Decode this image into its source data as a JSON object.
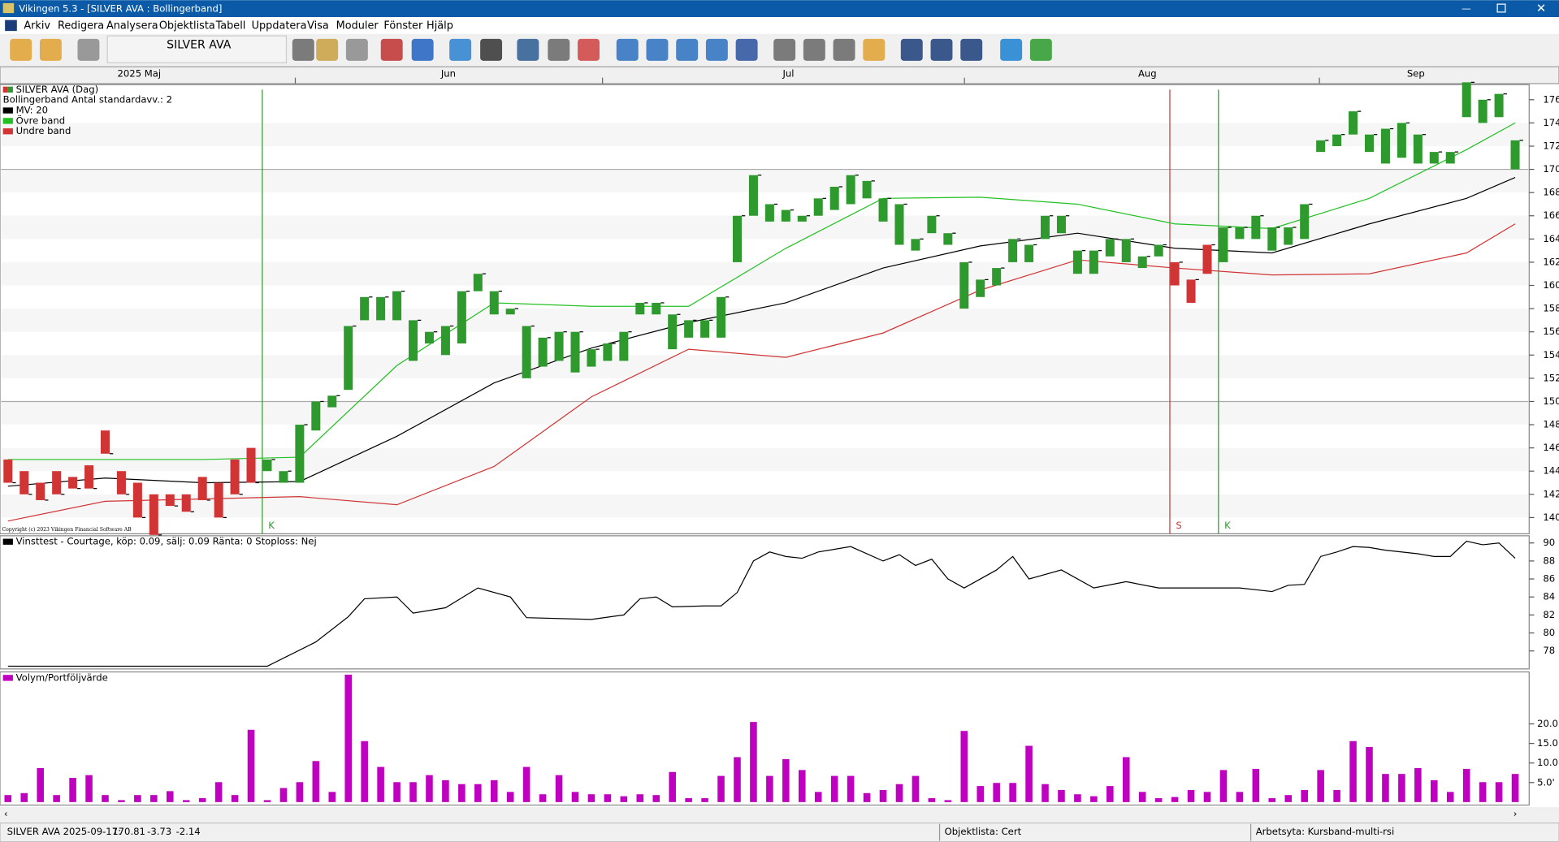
{
  "window": {
    "title": "Vikingen 5.3 - [SILVER AVA : Bollingerband]",
    "menu": [
      "Arkiv",
      "Redigera",
      "Analysera",
      "Objektlista",
      "Tabell",
      "Uppdatera",
      "Visa",
      "Moduler",
      "Fönster",
      "Hjälp"
    ]
  },
  "toolbar": {
    "symbol": "SILVER AVA"
  },
  "chart_data": [
    {
      "type": "candlestick",
      "title": "SILVER AVA (Dag)",
      "subtitle": "Bollingerband  Antal standardavv.: 2",
      "months": [
        "2025 Maj",
        "Jun",
        "Jul",
        "Aug",
        "Sep"
      ],
      "up_color": "#2e9a2e",
      "down_color": "#d03434",
      "open": [
        145,
        144,
        143,
        144,
        143.5,
        144.5,
        147.5,
        144,
        143,
        142,
        142,
        142,
        143.5,
        143,
        145,
        146,
        144,
        143,
        143,
        147.5,
        149.5,
        151,
        157,
        157,
        157,
        153.5,
        155,
        154,
        155,
        159.5,
        157.5,
        157.5,
        152,
        153,
        153.5,
        152.5,
        153,
        153.5,
        153.5,
        157.5,
        157.5,
        154.5,
        155.5,
        155.5,
        155.5,
        162,
        166,
        165.5,
        165.5,
        165.5,
        166,
        166.5,
        167,
        167.5,
        165.5,
        163.5,
        163,
        164.5,
        163.5,
        158,
        159,
        160,
        162,
        162,
        164,
        164.5,
        161,
        161,
        162.5,
        162,
        161.5,
        162.5,
        160,
        158.5,
        161,
        162,
        164,
        164,
        163,
        163.5,
        164,
        171.5,
        172,
        173,
        171.5,
        170.5,
        171,
        170.5,
        170.5,
        170.5,
        174.5,
        174,
        174.5,
        170
      ],
      "close": [
        143,
        142,
        141.5,
        142,
        142.5,
        142.5,
        145.5,
        142,
        140,
        138.5,
        141,
        140.5,
        141.5,
        140,
        142,
        143,
        145,
        144,
        148,
        150,
        150.5,
        156.5,
        159,
        159,
        159.5,
        157,
        156,
        156.5,
        159.5,
        161,
        159.5,
        158,
        156.5,
        155.5,
        156,
        156,
        154.5,
        155,
        156,
        158.5,
        158.5,
        157.5,
        157,
        157,
        159,
        166,
        169.5,
        167,
        166.5,
        166,
        167.5,
        168.5,
        169.5,
        169,
        167.5,
        167,
        164,
        166,
        164.5,
        162,
        160.5,
        161.5,
        164,
        163.5,
        166,
        166,
        163,
        163,
        164,
        164,
        162.5,
        163.5,
        162,
        160.5,
        163.5,
        165,
        165,
        166,
        165,
        165,
        167,
        172.5,
        173,
        175,
        173,
        173.5,
        174,
        173,
        171.5,
        171.5,
        177.5,
        176,
        176.5,
        172.5
      ],
      "signals": [
        {
          "label": "K",
          "index": 16
        },
        {
          "label": "S",
          "index": 72
        },
        {
          "label": "K",
          "index": 75
        }
      ],
      "lines": [
        {
          "name": "MV: 20",
          "color": "#000000",
          "x": [
            0,
            6,
            12,
            18,
            24,
            30,
            36,
            42,
            48,
            54,
            60,
            66,
            72,
            78,
            84,
            90,
            93
          ],
          "values": [
            142.7,
            143.4,
            143,
            143.1,
            147,
            151.6,
            154.6,
            156.8,
            158.5,
            161.5,
            163.4,
            164.5,
            163.2,
            162.8,
            165.3,
            167.5,
            169.3
          ]
        },
        {
          "name": "Övre band",
          "color": "#22c022",
          "x": [
            0,
            6,
            12,
            18,
            24,
            30,
            36,
            42,
            48,
            54,
            60,
            66,
            72,
            78,
            84,
            90,
            93
          ],
          "values": [
            145,
            145,
            145,
            145.2,
            153.1,
            158.5,
            158.2,
            158.2,
            163.2,
            167.5,
            167.6,
            167,
            165.3,
            164.9,
            167.5,
            171.7,
            174
          ]
        },
        {
          "name": "Undre band",
          "color": "#d03434",
          "x": [
            0,
            6,
            12,
            18,
            24,
            30,
            36,
            42,
            48,
            54,
            60,
            66,
            72,
            78,
            84,
            90,
            93
          ],
          "values": [
            139.7,
            141.4,
            141.6,
            141.8,
            141.1,
            144.4,
            150.4,
            154.5,
            153.8,
            155.9,
            159.6,
            162.2,
            161.5,
            160.9,
            161,
            162.8,
            165.3
          ]
        }
      ],
      "hlines": [
        150,
        170
      ],
      "ylim": [
        138.6,
        177.3
      ],
      "yticks": [
        140,
        142,
        144,
        146,
        148,
        150,
        152,
        154,
        156,
        158,
        160,
        162,
        164,
        166,
        168,
        170,
        172,
        174,
        176
      ],
      "copyright": "Copyright (c) 2023 Vikingen Financial Software AB"
    },
    {
      "type": "line",
      "title": "Vinsttest - Courtage, köp: 0.09, sälj: 0.09  Ränta: 0  Stoploss: Nej",
      "color": "#000000",
      "x": [
        0,
        16,
        19,
        21,
        22,
        24,
        25,
        27,
        29,
        31,
        32,
        36,
        38,
        39,
        40,
        41,
        43,
        44,
        45,
        46,
        47,
        48,
        49,
        50,
        52,
        54,
        55,
        56,
        57,
        58,
        59,
        60,
        61,
        62,
        63,
        65,
        67,
        69,
        71,
        74,
        76,
        78,
        79,
        80,
        81,
        82,
        83,
        84,
        85,
        87,
        88,
        89,
        90,
        91,
        92,
        93
      ],
      "values": [
        76.3,
        76.3,
        79,
        81.8,
        83.8,
        84,
        82.2,
        82.8,
        85,
        84,
        81.7,
        81.5,
        82,
        83.8,
        84,
        82.9,
        83,
        83,
        84.5,
        88,
        89,
        88.5,
        88.3,
        89,
        89.6,
        88,
        88.7,
        87.5,
        88.2,
        86,
        85,
        86,
        87,
        88.5,
        86,
        87,
        85,
        85.7,
        85,
        85,
        85,
        84.6,
        85.3,
        85.4,
        88.5,
        89,
        89.6,
        89.5,
        89.2,
        88.8,
        88.5,
        88.5,
        90.2,
        89.8,
        90,
        88.3
      ],
      "ylim": [
        76,
        90.8
      ],
      "yticks": [
        78,
        80,
        82,
        84,
        86,
        88,
        90
      ]
    },
    {
      "type": "bar",
      "title": "Volym/Portföljvärde",
      "color": "#c000c0",
      "values": [
        1.8,
        2.3,
        8.7,
        1.8,
        6.2,
        6.9,
        1.8,
        0.5,
        1.8,
        1.8,
        2.8,
        0.5,
        1,
        5.1,
        1.8,
        18.5,
        0.5,
        3.6,
        5.1,
        10.5,
        2.6,
        32.6,
        15.6,
        9,
        5.1,
        5.1,
        6.9,
        5.6,
        4.6,
        4.6,
        5.6,
        2.6,
        9,
        2,
        6.9,
        2.6,
        2,
        2,
        1.5,
        2,
        1.8,
        7.7,
        1,
        1,
        6.7,
        11.5,
        20.5,
        6.7,
        11,
        8.2,
        2.6,
        6.7,
        6.7,
        2.3,
        3.1,
        4.6,
        6.7,
        1,
        0.5,
        18.2,
        4.1,
        4.9,
        4.9,
        14.4,
        4.6,
        3.1,
        2,
        1.5,
        4.1,
        11.5,
        2.6,
        1,
        1.3,
        3.1,
        2.6,
        8.2,
        2.6,
        8.5,
        1,
        1.8,
        3.1,
        8.2,
        3.1,
        15.6,
        14.1,
        7.2,
        7.2,
        8.7,
        5.6,
        2.6,
        8.5,
        5.1,
        5.1,
        7.2
      ],
      "ylim": [
        0,
        33.3
      ],
      "yticks": [
        {
          "value": 5,
          "label": "5.0'"
        },
        {
          "value": 10,
          "label": "10.0'"
        },
        {
          "value": 15,
          "label": "15.0'"
        },
        {
          "value": 20,
          "label": "20.0'"
        }
      ]
    }
  ],
  "status_bar": {
    "label": "SILVER AVA 2025-09-17:",
    "last": 170.81,
    "change": -3.73,
    "change_pct": -2.14,
    "list": "Objektlista: Cert",
    "workspace": "Arbetsyta: Kursband-multi-rsi"
  }
}
